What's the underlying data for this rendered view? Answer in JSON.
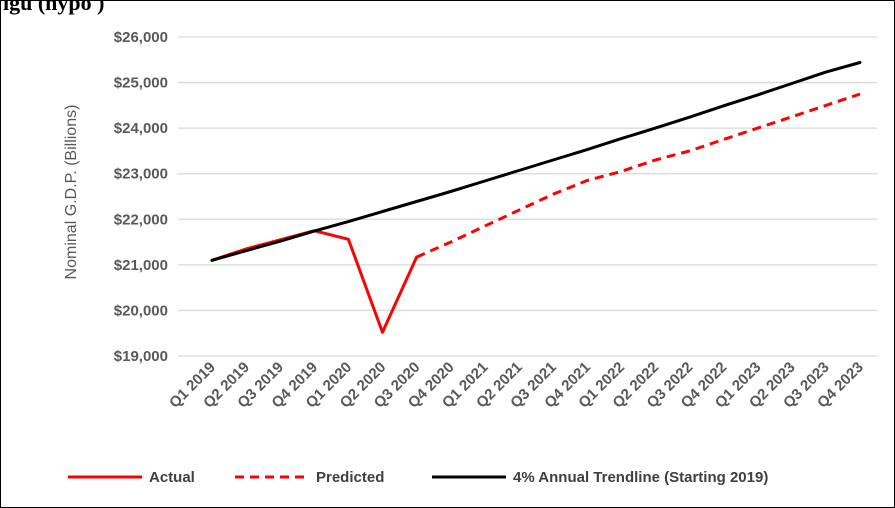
{
  "figure": {
    "title_fragment": "igu                                                                    (hypo    )"
  },
  "chart_data": {
    "type": "line",
    "title": "",
    "xlabel": "",
    "ylabel": "Nominal G.D.P. (Billions)",
    "ylim": [
      19000,
      26000
    ],
    "yticks": [
      19000,
      20000,
      21000,
      22000,
      23000,
      24000,
      25000,
      26000
    ],
    "ytick_labels": [
      "$19,000",
      "$20,000",
      "$21,000",
      "$22,000",
      "$23,000",
      "$24,000",
      "$25,000",
      "$26,000"
    ],
    "categories": [
      "Q1 2019",
      "Q2 2019",
      "Q3 2019",
      "Q4 2019",
      "Q1 2020",
      "Q2 2020",
      "Q3 2020",
      "Q4 2020",
      "Q1 2021",
      "Q2 2021",
      "Q3 2021",
      "Q4 2021",
      "Q1 2022",
      "Q2 2022",
      "Q3 2022",
      "Q4 2022",
      "Q1 2023",
      "Q2 2023",
      "Q3 2023",
      "Q4 2023"
    ],
    "grid": true,
    "legend_position": "bottom",
    "series": [
      {
        "name": "Actual",
        "color": "#ff0000",
        "style": "solid",
        "values": [
          21100,
          21350,
          21550,
          21750,
          21560,
          19520,
          21170,
          null,
          null,
          null,
          null,
          null,
          null,
          null,
          null,
          null,
          null,
          null,
          null,
          null
        ]
      },
      {
        "name": "Predicted",
        "color": "#ff0000",
        "style": "dashed",
        "values": [
          null,
          null,
          null,
          null,
          null,
          null,
          21170,
          21500,
          21850,
          22200,
          22550,
          22850,
          23050,
          23300,
          23500,
          23750,
          24000,
          24250,
          24500,
          24750
        ]
      },
      {
        "name": "4% Annual Trendline (Starting 2019)",
        "color": "#000000",
        "style": "solid",
        "values": [
          21100,
          21310,
          21520,
          21740,
          21950,
          22170,
          22390,
          22610,
          22840,
          23070,
          23300,
          23530,
          23770,
          24000,
          24240,
          24490,
          24730,
          24980,
          25230,
          25440
        ]
      }
    ]
  }
}
